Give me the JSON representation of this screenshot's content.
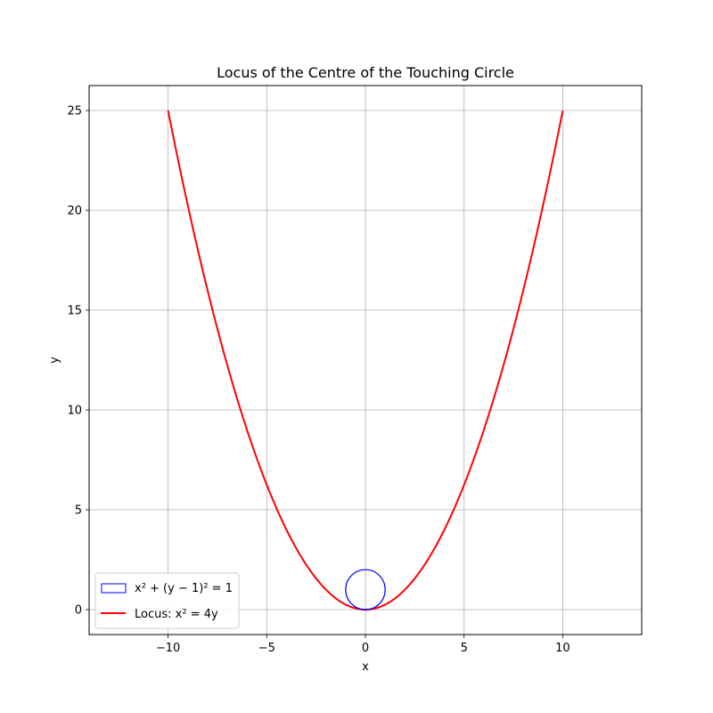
{
  "chart_data": {
    "type": "line",
    "title": "Locus of the Centre of the Touching Circle",
    "xlabel": "x",
    "ylabel": "y",
    "xlim": [
      -14,
      14
    ],
    "ylim": [
      -1.25,
      26.25
    ],
    "xticks": [
      -10,
      -5,
      0,
      5,
      10
    ],
    "yticks": [
      0,
      5,
      10,
      15,
      20,
      25
    ],
    "xtick_labels": [
      "−10",
      "−5",
      "0",
      "5",
      "10"
    ],
    "ytick_labels": [
      "0",
      "5",
      "10",
      "15",
      "20",
      "25"
    ],
    "grid": true,
    "legend_position": "lower-left",
    "series": [
      {
        "name": "Locus: x² = 4y",
        "kind": "parabola",
        "equation": "y = x^2/4",
        "x_range": [
          -10,
          10
        ],
        "color": "#ff0000"
      },
      {
        "name": "x² + (y − 1)² = 1",
        "kind": "circle",
        "center": [
          0,
          1
        ],
        "radius": 1,
        "color": "#0000ff"
      }
    ]
  }
}
